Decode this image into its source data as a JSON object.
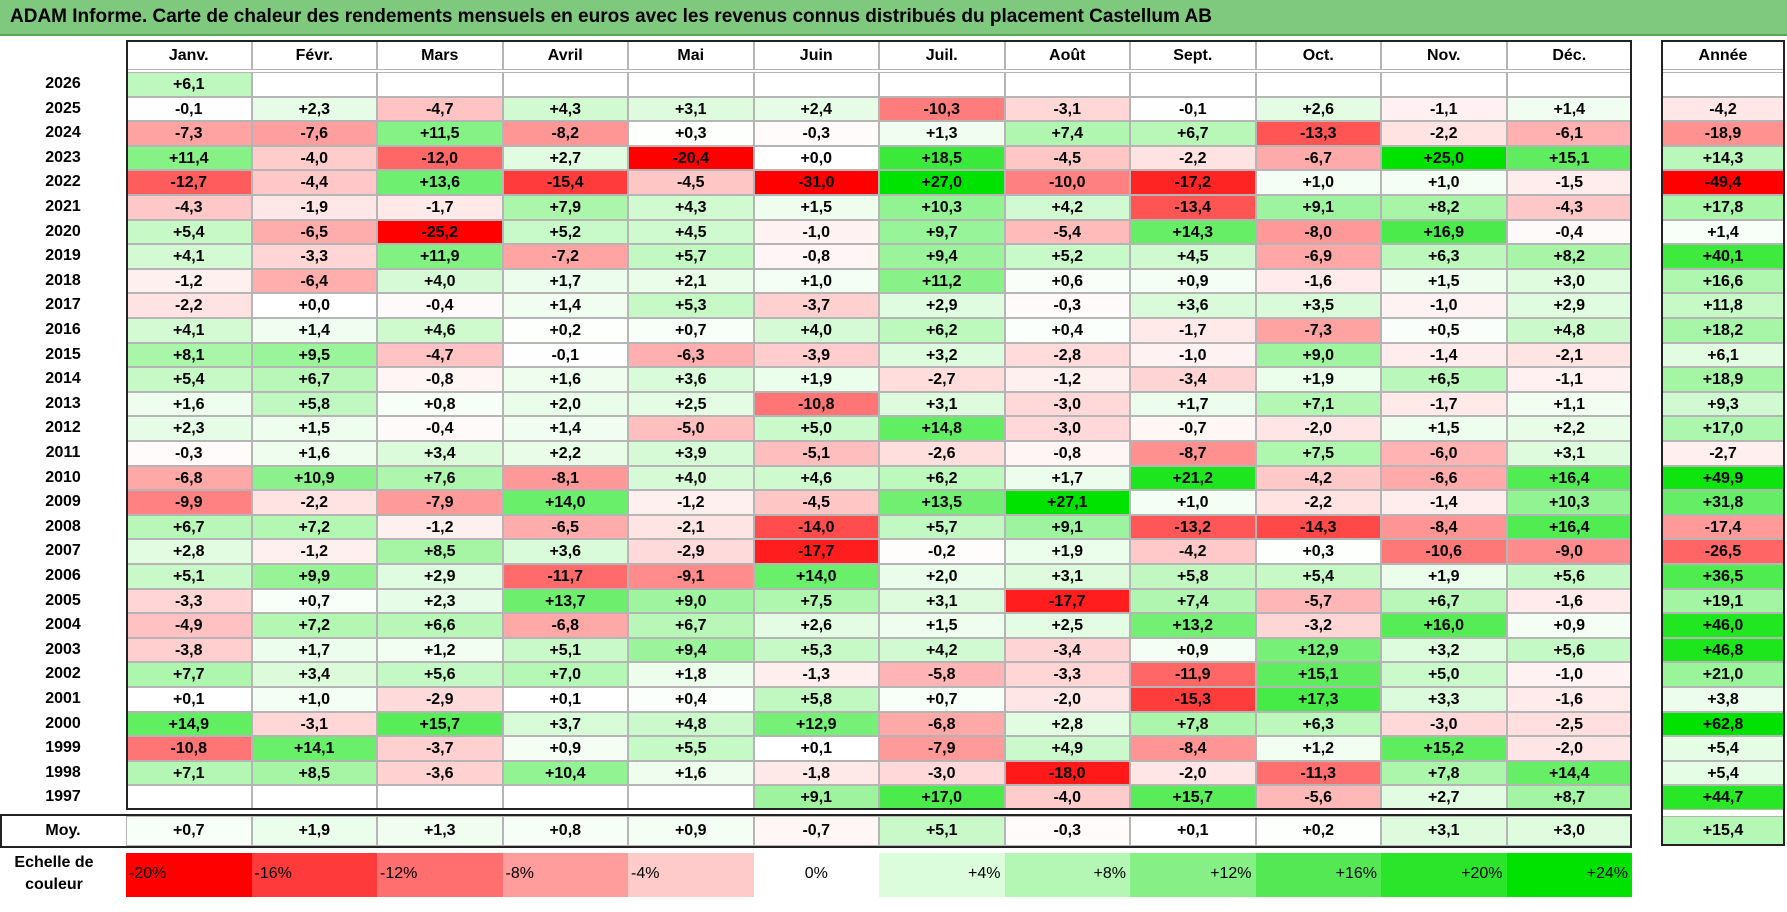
{
  "title": "ADAM Informe. Carte de chaleur des rendements mensuels en euros avec les revenus connus distribués du placement Castellum AB",
  "chart_data": {
    "type": "heatmap",
    "title": "ADAM Informe. Carte de chaleur des rendements mensuels en euros avec les revenus connus distribués du placement Castellum AB",
    "months": [
      "Janv.",
      "Févr.",
      "Mars",
      "Avril",
      "Mai",
      "Juin",
      "Juil.",
      "Août",
      "Sept.",
      "Oct.",
      "Nov.",
      "Déc."
    ],
    "year_header": "Année",
    "avg_label": "Moy.",
    "rows": [
      {
        "year": "2026",
        "months": [
          "+6,1",
          "",
          "",
          "",
          "",
          "",
          "",
          "",
          "",
          "",
          "",
          ""
        ],
        "annual": ""
      },
      {
        "year": "2025",
        "months": [
          "-0,1",
          "+2,3",
          "-4,7",
          "+4,3",
          "+3,1",
          "+2,4",
          "-10,3",
          "-3,1",
          "-0,1",
          "+2,6",
          "-1,1",
          "+1,4"
        ],
        "annual": "-4,2"
      },
      {
        "year": "2024",
        "months": [
          "-7,3",
          "-7,6",
          "+11,5",
          "-8,2",
          "+0,3",
          "-0,3",
          "+1,3",
          "+7,4",
          "+6,7",
          "-13,3",
          "-2,2",
          "-6,1"
        ],
        "annual": "-18,9"
      },
      {
        "year": "2023",
        "months": [
          "+11,4",
          "-4,0",
          "-12,0",
          "+2,7",
          "-20,4",
          "+0,0",
          "+18,5",
          "-4,5",
          "-2,2",
          "-6,7",
          "+25,0",
          "+15,1"
        ],
        "annual": "+14,3"
      },
      {
        "year": "2022",
        "months": [
          "-12,7",
          "-4,4",
          "+13,6",
          "-15,4",
          "-4,5",
          "-31,0",
          "+27,0",
          "-10,0",
          "-17,2",
          "+1,0",
          "+1,0",
          "-1,5"
        ],
        "annual": "-49,4"
      },
      {
        "year": "2021",
        "months": [
          "-4,3",
          "-1,9",
          "-1,7",
          "+7,9",
          "+4,3",
          "+1,5",
          "+10,3",
          "+4,2",
          "-13,4",
          "+9,1",
          "+8,2",
          "-4,3"
        ],
        "annual": "+17,8"
      },
      {
        "year": "2020",
        "months": [
          "+5,4",
          "-6,5",
          "-25,2",
          "+5,2",
          "+4,5",
          "-1,0",
          "+9,7",
          "-5,4",
          "+14,3",
          "-8,0",
          "+16,9",
          "-0,4"
        ],
        "annual": "+1,4"
      },
      {
        "year": "2019",
        "months": [
          "+4,1",
          "-3,3",
          "+11,9",
          "-7,2",
          "+5,7",
          "-0,8",
          "+9,4",
          "+5,2",
          "+4,5",
          "-6,9",
          "+6,3",
          "+8,2"
        ],
        "annual": "+40,1"
      },
      {
        "year": "2018",
        "months": [
          "-1,2",
          "-6,4",
          "+4,0",
          "+1,7",
          "+2,1",
          "+1,0",
          "+11,2",
          "+0,6",
          "+0,9",
          "-1,6",
          "+1,5",
          "+3,0"
        ],
        "annual": "+16,6"
      },
      {
        "year": "2017",
        "months": [
          "-2,2",
          "+0,0",
          "-0,4",
          "+1,4",
          "+5,3",
          "-3,7",
          "+2,9",
          "-0,3",
          "+3,6",
          "+3,5",
          "-1,0",
          "+2,9"
        ],
        "annual": "+11,8"
      },
      {
        "year": "2016",
        "months": [
          "+4,1",
          "+1,4",
          "+4,6",
          "+0,2",
          "+0,7",
          "+4,0",
          "+6,2",
          "+0,4",
          "-1,7",
          "-7,3",
          "+0,5",
          "+4,8"
        ],
        "annual": "+18,2"
      },
      {
        "year": "2015",
        "months": [
          "+8,1",
          "+9,5",
          "-4,7",
          "-0,1",
          "-6,3",
          "-3,9",
          "+3,2",
          "-2,8",
          "-1,0",
          "+9,0",
          "-1,4",
          "-2,1"
        ],
        "annual": "+6,1"
      },
      {
        "year": "2014",
        "months": [
          "+5,4",
          "+6,7",
          "-0,8",
          "+1,6",
          "+3,6",
          "+1,9",
          "-2,7",
          "-1,2",
          "-3,4",
          "+1,9",
          "+6,5",
          "-1,1"
        ],
        "annual": "+18,9"
      },
      {
        "year": "2013",
        "months": [
          "+1,6",
          "+5,8",
          "+0,8",
          "+2,0",
          "+2,5",
          "-10,8",
          "+3,1",
          "-3,0",
          "+1,7",
          "+7,1",
          "-1,7",
          "+1,1"
        ],
        "annual": "+9,3"
      },
      {
        "year": "2012",
        "months": [
          "+2,3",
          "+1,5",
          "-0,4",
          "+1,4",
          "-5,0",
          "+5,0",
          "+14,8",
          "-3,0",
          "-0,7",
          "-2,0",
          "+1,5",
          "+2,2"
        ],
        "annual": "+17,0"
      },
      {
        "year": "2011",
        "months": [
          "-0,3",
          "+1,6",
          "+3,4",
          "+2,2",
          "+3,9",
          "-5,1",
          "-2,6",
          "-0,8",
          "-8,7",
          "+7,5",
          "-6,0",
          "+3,1"
        ],
        "annual": "-2,7"
      },
      {
        "year": "2010",
        "months": [
          "-6,8",
          "+10,9",
          "+7,6",
          "-8,1",
          "+4,0",
          "+4,6",
          "+6,2",
          "+1,7",
          "+21,2",
          "-4,2",
          "-6,6",
          "+16,4"
        ],
        "annual": "+49,9"
      },
      {
        "year": "2009",
        "months": [
          "-9,9",
          "-2,2",
          "-7,9",
          "+14,0",
          "-1,2",
          "-4,5",
          "+13,5",
          "+27,1",
          "+1,0",
          "-2,2",
          "-1,4",
          "+10,3"
        ],
        "annual": "+31,8"
      },
      {
        "year": "2008",
        "months": [
          "+6,7",
          "+7,2",
          "-1,2",
          "-6,5",
          "-2,1",
          "-14,0",
          "+5,7",
          "+9,1",
          "-13,2",
          "-14,3",
          "-8,4",
          "+16,4"
        ],
        "annual": "-17,4"
      },
      {
        "year": "2007",
        "months": [
          "+2,8",
          "-1,2",
          "+8,5",
          "+3,6",
          "-2,9",
          "-17,7",
          "-0,2",
          "+1,9",
          "-4,2",
          "+0,3",
          "-10,6",
          "-9,0"
        ],
        "annual": "-26,5"
      },
      {
        "year": "2006",
        "months": [
          "+5,1",
          "+9,9",
          "+2,9",
          "-11,7",
          "-9,1",
          "+14,0",
          "+2,0",
          "+3,1",
          "+5,8",
          "+5,4",
          "+1,9",
          "+5,6"
        ],
        "annual": "+36,5"
      },
      {
        "year": "2005",
        "months": [
          "-3,3",
          "+0,7",
          "+2,3",
          "+13,7",
          "+9,0",
          "+7,5",
          "+3,1",
          "-17,7",
          "+7,4",
          "-5,7",
          "+6,7",
          "-1,6"
        ],
        "annual": "+19,1"
      },
      {
        "year": "2004",
        "months": [
          "-4,9",
          "+7,2",
          "+6,6",
          "-6,8",
          "+6,7",
          "+2,6",
          "+1,5",
          "+2,5",
          "+13,2",
          "-3,2",
          "+16,0",
          "+0,9"
        ],
        "annual": "+46,0"
      },
      {
        "year": "2003",
        "months": [
          "-3,8",
          "+1,7",
          "+1,2",
          "+5,1",
          "+9,4",
          "+5,3",
          "+4,2",
          "-3,4",
          "+0,9",
          "+12,9",
          "+3,2",
          "+5,6"
        ],
        "annual": "+46,8"
      },
      {
        "year": "2002",
        "months": [
          "+7,7",
          "+3,4",
          "+5,6",
          "+7,0",
          "+1,8",
          "-1,3",
          "-5,8",
          "-3,3",
          "-11,9",
          "+15,1",
          "+5,0",
          "-1,0"
        ],
        "annual": "+21,0"
      },
      {
        "year": "2001",
        "months": [
          "+0,1",
          "+1,0",
          "-2,9",
          "+0,1",
          "+0,4",
          "+5,8",
          "+0,7",
          "-2,0",
          "-15,3",
          "+17,3",
          "+3,3",
          "-1,6"
        ],
        "annual": "+3,8"
      },
      {
        "year": "2000",
        "months": [
          "+14,9",
          "-3,1",
          "+15,7",
          "+3,7",
          "+4,8",
          "+12,9",
          "-6,8",
          "+2,8",
          "+7,8",
          "+6,3",
          "-3,0",
          "-2,5"
        ],
        "annual": "+62,8"
      },
      {
        "year": "1999",
        "months": [
          "-10,8",
          "+14,1",
          "-3,7",
          "+0,9",
          "+5,5",
          "+0,1",
          "-7,9",
          "+4,9",
          "-8,4",
          "+1,2",
          "+15,2",
          "-2,0"
        ],
        "annual": "+5,4"
      },
      {
        "year": "1998",
        "months": [
          "+7,1",
          "+8,5",
          "-3,6",
          "+10,4",
          "+1,6",
          "-1,8",
          "-3,0",
          "-18,0",
          "-2,0",
          "-11,3",
          "+7,8",
          "+14,4"
        ],
        "annual": "+5,4"
      },
      {
        "year": "1997",
        "months": [
          "",
          "",
          "",
          "",
          "",
          "+9,1",
          "+17,0",
          "-4,0",
          "+15,7",
          "-5,6",
          "+2,7",
          "+8,7"
        ],
        "annual": "+44,7"
      }
    ],
    "averages": {
      "months": [
        "+0,7",
        "+1,9",
        "+1,3",
        "+0,8",
        "+0,9",
        "-0,7",
        "+5,1",
        "-0,3",
        "+0,1",
        "+0,2",
        "+3,1",
        "+3,0"
      ],
      "annual": "+15,4"
    },
    "color_scale": {
      "label": "Echelle de couleur",
      "steps": [
        "-20%",
        "-16%",
        "-12%",
        "-8%",
        "-4%",
        "0%",
        "+4%",
        "+8%",
        "+12%",
        "+16%",
        "+20%",
        "+24%"
      ],
      "colors": [
        "#ff0000",
        "#ff3a3a",
        "#ff6f6f",
        "#ff9c9c",
        "#ffcaca",
        "#ffffff",
        "#dcfddc",
        "#b4f7b4",
        "#86ef86",
        "#55e855",
        "#2be52b",
        "#00e300"
      ]
    }
  }
}
